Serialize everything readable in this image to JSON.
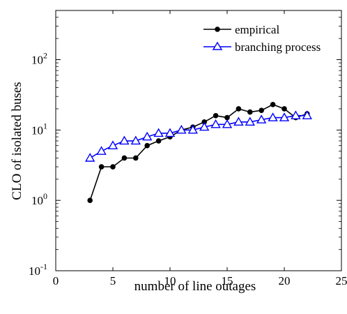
{
  "chart_data": {
    "type": "line",
    "xlabel": "number of line outages",
    "ylabel": "CLO of isolated buses",
    "xlim": [
      0,
      25
    ],
    "ylim": [
      0.1,
      500
    ],
    "yscale": "log",
    "grid": false,
    "legend_position": "top-right",
    "x_ticks": [
      "0",
      "5",
      "10",
      "15",
      "20",
      "25"
    ],
    "y_ticks": [
      {
        "base": "10",
        "exp": "-1"
      },
      {
        "base": "10",
        "exp": "0"
      },
      {
        "base": "10",
        "exp": "1"
      },
      {
        "base": "10",
        "exp": "2"
      }
    ],
    "series": [
      {
        "name": "empirical",
        "color": "#000000",
        "marker": "filled-circle",
        "x": [
          3,
          4,
          5,
          6,
          7,
          8,
          9,
          10,
          11,
          12,
          13,
          14,
          15,
          16,
          17,
          18,
          19,
          20,
          21,
          22
        ],
        "y": [
          1,
          3,
          3,
          4,
          4,
          6,
          7,
          8,
          10,
          11,
          13,
          16,
          15,
          20,
          18,
          19,
          23,
          20,
          15,
          17
        ]
      },
      {
        "name": "branching process",
        "color": "#0000ff",
        "marker": "open-triangle",
        "x": [
          3,
          4,
          5,
          6,
          7,
          8,
          9,
          10,
          11,
          12,
          13,
          14,
          15,
          16,
          17,
          18,
          19,
          20,
          21,
          22
        ],
        "y": [
          4,
          5,
          6,
          7,
          7,
          8,
          9,
          9,
          10,
          10,
          11,
          12,
          12,
          13,
          13,
          14,
          15,
          15,
          16,
          16
        ]
      }
    ]
  }
}
